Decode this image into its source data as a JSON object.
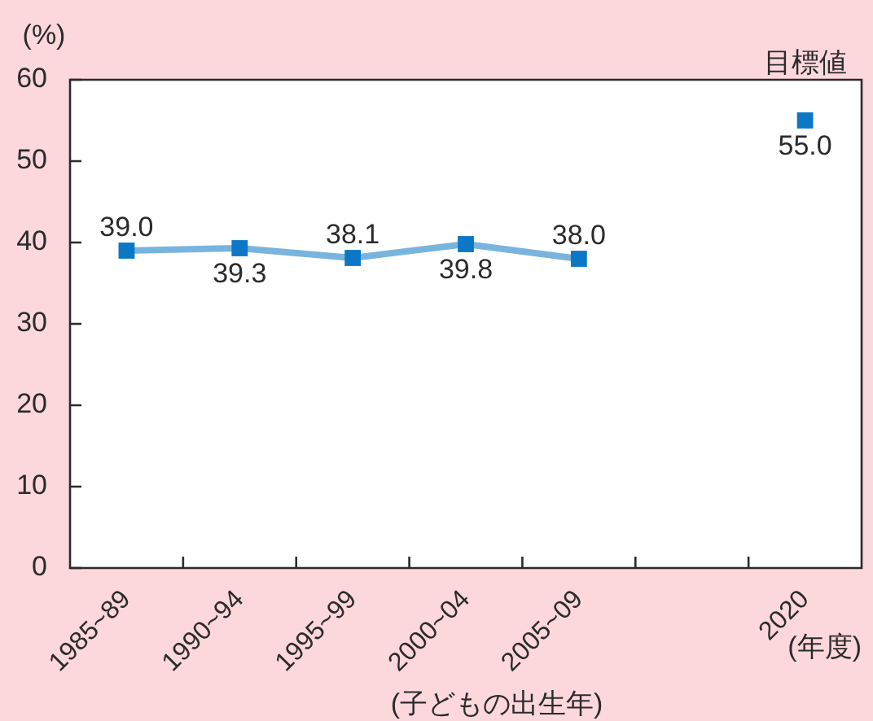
{
  "chart_data": {
    "type": "line",
    "xlabel": "(子どもの出生年)",
    "ylabel": "(%)",
    "categories": [
      "1985~89",
      "1990~94",
      "1995~99",
      "2000~04",
      "2005~09",
      null,
      "2020"
    ],
    "series": [
      {
        "color": "#0b77c5",
        "values": [
          39.0,
          39.3,
          38.1,
          39.8,
          38.0,
          null,
          null
        ],
        "value_labels": [
          "39.0",
          "39.3",
          "38.1",
          "39.8",
          "38.0",
          null,
          null
        ]
      },
      {
        "name": "目標値",
        "type": "scatter",
        "color": "#0b77c5",
        "values": [
          null,
          null,
          null,
          null,
          null,
          null,
          55.0
        ],
        "value_labels": [
          null,
          null,
          null,
          null,
          null,
          null,
          "55.0"
        ]
      }
    ],
    "ylim": [
      0,
      60
    ],
    "yticks": [
      0,
      10,
      20,
      30,
      40,
      50,
      60
    ],
    "marker": "square",
    "annotations": [
      "(年度)"
    ]
  }
}
